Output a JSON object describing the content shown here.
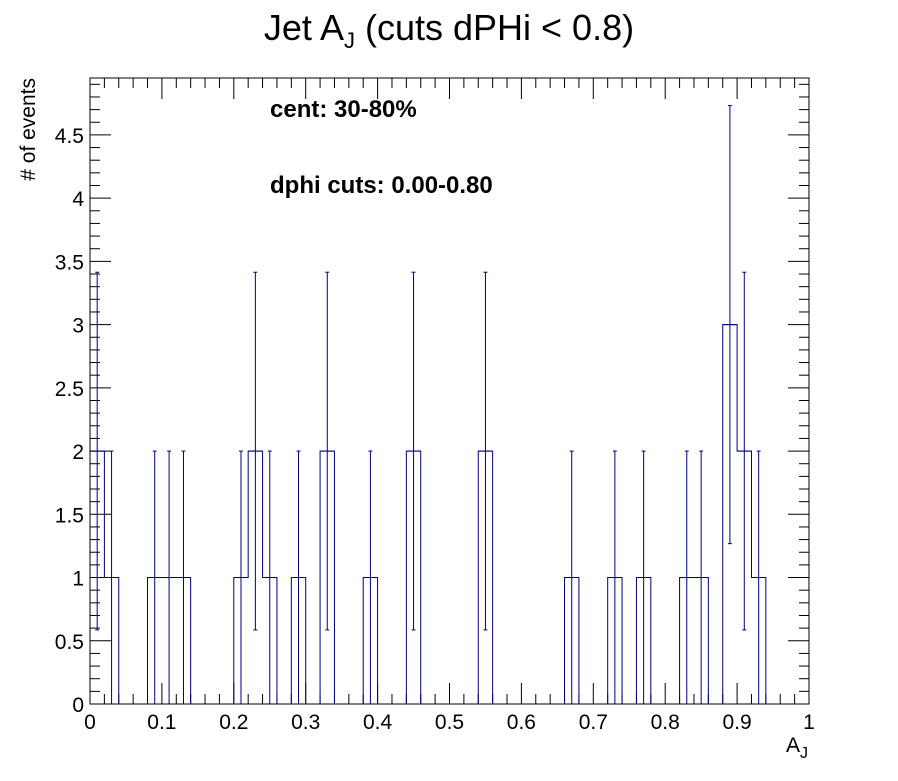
{
  "chart_data": {
    "type": "bar",
    "title_main": "Jet A",
    "title_sub": "J",
    "title_rest": " (cuts dPHi < 0.8)",
    "xlabel_main": "A",
    "xlabel_sub": "J",
    "ylabel": "# of events",
    "xlim": [
      0,
      1
    ],
    "ylim": [
      0,
      4.95
    ],
    "bin_width": 0.02,
    "x_ticks": [
      "0",
      "0.1",
      "0.2",
      "0.3",
      "0.4",
      "0.5",
      "0.6",
      "0.7",
      "0.8",
      "0.9",
      "1"
    ],
    "y_ticks": [
      "0",
      "0.5",
      "1",
      "1.5",
      "2",
      "2.5",
      "3",
      "3.5",
      "4",
      "4.5"
    ],
    "annotations": [
      "cent: 30-80%",
      "dphi cuts: 0.00-0.80"
    ],
    "line_color": "#000080",
    "bins": [
      {
        "x": 0.01,
        "y": 2
      },
      {
        "x": 0.03,
        "y": 1
      },
      {
        "x": 0.09,
        "y": 1
      },
      {
        "x": 0.11,
        "y": 1
      },
      {
        "x": 0.13,
        "y": 1
      },
      {
        "x": 0.21,
        "y": 1
      },
      {
        "x": 0.23,
        "y": 2
      },
      {
        "x": 0.25,
        "y": 1
      },
      {
        "x": 0.29,
        "y": 1
      },
      {
        "x": 0.33,
        "y": 2
      },
      {
        "x": 0.39,
        "y": 1
      },
      {
        "x": 0.45,
        "y": 2
      },
      {
        "x": 0.55,
        "y": 2
      },
      {
        "x": 0.67,
        "y": 1
      },
      {
        "x": 0.73,
        "y": 1
      },
      {
        "x": 0.77,
        "y": 1
      },
      {
        "x": 0.83,
        "y": 1
      },
      {
        "x": 0.85,
        "y": 1
      },
      {
        "x": 0.89,
        "y": 3
      },
      {
        "x": 0.91,
        "y": 2
      },
      {
        "x": 0.93,
        "y": 1
      }
    ]
  }
}
